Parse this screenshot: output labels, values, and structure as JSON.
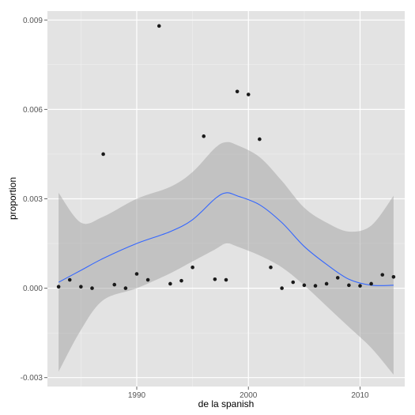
{
  "chart_data": {
    "type": "scatter",
    "xlabel": "de la spanish",
    "ylabel": "proportion",
    "xlim": [
      1982,
      2014
    ],
    "ylim": [
      -0.0033,
      0.0093
    ],
    "x_ticks": [
      1990,
      2000,
      2010
    ],
    "x_tick_labels": [
      "1990",
      "2000",
      "2010"
    ],
    "y_ticks": [
      -0.003,
      0.0,
      0.003,
      0.006,
      0.009
    ],
    "y_tick_labels": [
      "-0.003",
      "0.000",
      "0.003",
      "0.006",
      "0.009"
    ],
    "grid": true,
    "series": [
      {
        "kind": "points",
        "x": [
          1983,
          1984,
          1985,
          1986,
          1987,
          1988,
          1989,
          1990,
          1991,
          1992,
          1993,
          1994,
          1995,
          1996,
          1997,
          1998,
          1999,
          2000,
          2001,
          2002,
          2003,
          2004,
          2005,
          2006,
          2007,
          2008,
          2009,
          2010,
          2011,
          2012,
          2013
        ],
        "y": [
          5e-05,
          0.00028,
          5e-05,
          0.0,
          0.0045,
          0.00012,
          0.0,
          0.00048,
          0.00028,
          0.0088,
          0.00015,
          0.00025,
          0.0007,
          0.0051,
          0.0003,
          0.00028,
          0.0066,
          0.0065,
          0.005,
          0.0007,
          0.0,
          0.0002,
          0.0001,
          8e-05,
          0.00015,
          0.00035,
          0.0001,
          8e-05,
          0.00015,
          0.00045,
          0.00038
        ]
      },
      {
        "kind": "smooth",
        "x": [
          1983,
          1985,
          1987,
          1990,
          1993,
          1995,
          1997,
          1998,
          1999,
          2001,
          2003,
          2005,
          2007,
          2009,
          2011,
          2013
        ],
        "y": [
          0.0002,
          0.0006,
          0.001,
          0.0015,
          0.0019,
          0.0023,
          0.003,
          0.0032,
          0.0031,
          0.0028,
          0.0022,
          0.0014,
          0.0008,
          0.0003,
          0.0001,
          0.0001
        ],
        "band_upper": [
          0.0032,
          0.0022,
          0.0024,
          0.003,
          0.0034,
          0.0039,
          0.0047,
          0.0049,
          0.0048,
          0.0044,
          0.0036,
          0.0027,
          0.0022,
          0.0019,
          0.0021,
          0.0031
        ],
        "band_lower": [
          -0.0028,
          -0.0014,
          -0.0004,
          0.0,
          0.0005,
          0.0009,
          0.0013,
          0.0015,
          0.0014,
          0.0011,
          0.0007,
          0.0001,
          -0.0006,
          -0.0013,
          -0.002,
          -0.0029
        ]
      }
    ],
    "colors": {
      "panel": "#e3e3e3",
      "grid_major": "#ffffff",
      "grid_minor": "#f0f0f0",
      "points": "#1a1a1a",
      "smooth_line": "#3366ff",
      "band": "#999999"
    }
  }
}
